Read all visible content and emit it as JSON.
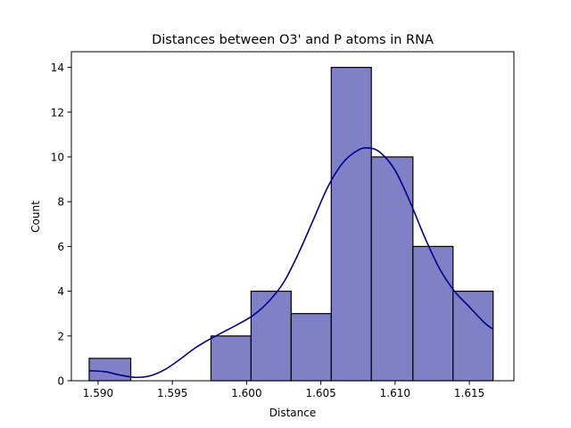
{
  "chart_data": {
    "type": "bar",
    "subtype": "histogram-with-kde",
    "title": "Distances between O3' and P atoms in RNA",
    "xlabel": "Distance",
    "ylabel": "Count",
    "xlim": [
      1.5882,
      1.618
    ],
    "ylim": [
      0,
      14.7
    ],
    "xticks": [
      1.59,
      1.595,
      1.6,
      1.605,
      1.61,
      1.615
    ],
    "xtick_labels": [
      "1.590",
      "1.595",
      "1.600",
      "1.605",
      "1.610",
      "1.615"
    ],
    "yticks": [
      0,
      2,
      4,
      6,
      8,
      10,
      12,
      14
    ],
    "ytick_labels": [
      "0",
      "2",
      "4",
      "6",
      "8",
      "10",
      "12",
      "14"
    ],
    "bins": [
      {
        "x0": 1.5894,
        "x1": 1.5922,
        "count": 1
      },
      {
        "x0": 1.5922,
        "x1": 1.5949,
        "count": 0
      },
      {
        "x0": 1.5949,
        "x1": 1.5976,
        "count": 0
      },
      {
        "x0": 1.5976,
        "x1": 1.6003,
        "count": 2
      },
      {
        "x0": 1.6003,
        "x1": 1.603,
        "count": 4
      },
      {
        "x0": 1.603,
        "x1": 1.6057,
        "count": 3
      },
      {
        "x0": 1.6057,
        "x1": 1.6084,
        "count": 14
      },
      {
        "x0": 1.6084,
        "x1": 1.6112,
        "count": 10
      },
      {
        "x0": 1.6112,
        "x1": 1.6139,
        "count": 6
      },
      {
        "x0": 1.6139,
        "x1": 1.6166,
        "count": 4
      }
    ],
    "kde": {
      "x": [
        1.5894,
        1.5905,
        1.5915,
        1.5925,
        1.5935,
        1.5945,
        1.5955,
        1.5965,
        1.5975,
        1.5985,
        1.5995,
        1.6005,
        1.6015,
        1.6025,
        1.6035,
        1.6045,
        1.6055,
        1.6065,
        1.6075,
        1.6082,
        1.609,
        1.61,
        1.611,
        1.612,
        1.613,
        1.614,
        1.615,
        1.616,
        1.6166
      ],
      "y": [
        0.45,
        0.4,
        0.25,
        0.15,
        0.22,
        0.5,
        0.95,
        1.45,
        1.85,
        2.2,
        2.55,
        2.95,
        3.55,
        4.4,
        5.7,
        7.2,
        8.7,
        9.75,
        10.3,
        10.4,
        10.2,
        9.4,
        8.0,
        6.4,
        5.0,
        4.0,
        3.3,
        2.6,
        2.3
      ]
    },
    "colors": {
      "bar_fill": "#8080c6",
      "bar_edge": "#000000",
      "kde_line": "#00008b",
      "axes": "#000000",
      "background": "#ffffff"
    },
    "grid": false,
    "legend": "none"
  }
}
